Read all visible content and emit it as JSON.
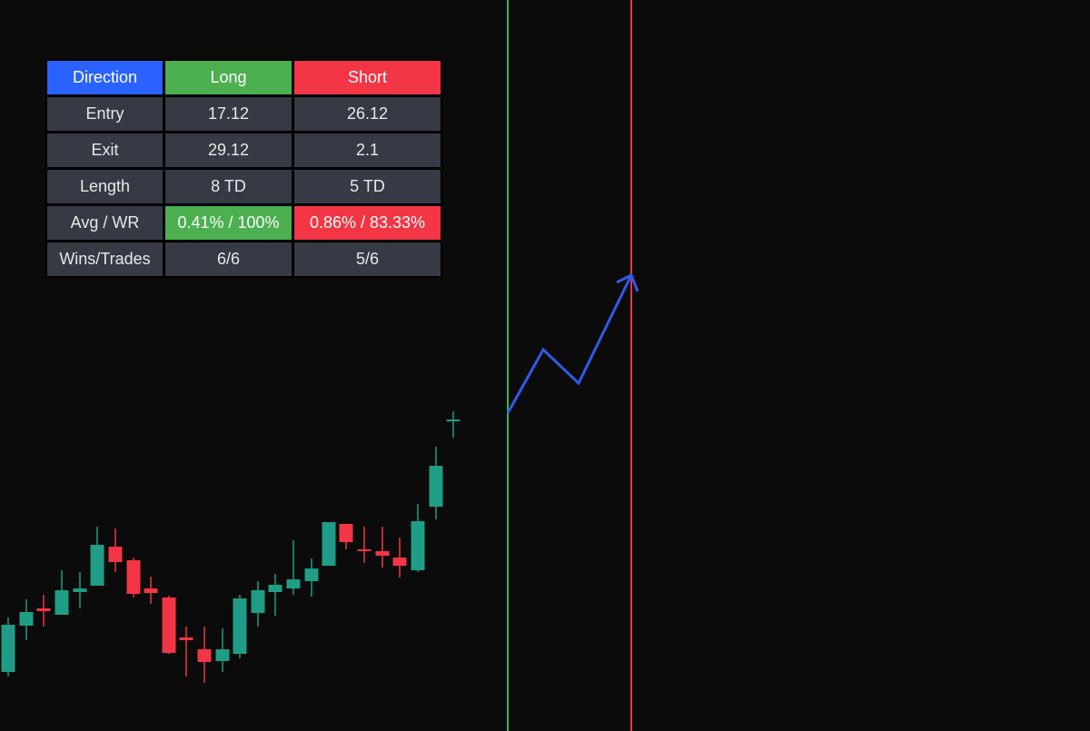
{
  "table": {
    "header": [
      "Direction",
      "Long",
      "Short"
    ],
    "rows": [
      [
        "Entry",
        "17.12",
        "26.12"
      ],
      [
        "Exit",
        "29.12",
        "2.1"
      ],
      [
        "Length",
        "8 TD",
        "5 TD"
      ],
      [
        "Avg / WR",
        "0.41% / 100%",
        "0.86% / 83.33%"
      ],
      [
        "Wins/Trades",
        "6/6",
        "5/6"
      ]
    ]
  }
}
